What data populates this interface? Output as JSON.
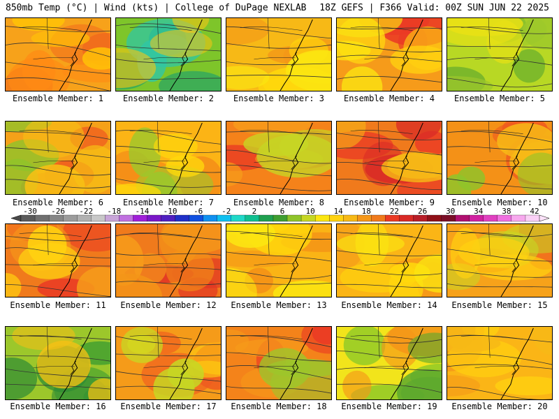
{
  "header": {
    "left": "850mb Temp (°C) | Wind (kts) | College of DuPage NEXLAB",
    "right": "18Z GEFS | F366 Valid: 00Z SUN JUN 22 2025"
  },
  "members": [
    {
      "label": "Ensemble Member: 1",
      "base": "#f7a21a",
      "spots": [
        "#f06b1c",
        "#ff8a14",
        "#ffc107"
      ]
    },
    {
      "label": "Ensemble Member: 2",
      "base": "#7ec52a",
      "spots": [
        "#1ea26b",
        "#2fc6a6",
        "#f6c515"
      ]
    },
    {
      "label": "Ensemble Member: 3",
      "base": "#f7b916",
      "spots": [
        "#f39517",
        "#ffd80c",
        "#fbe611"
      ]
    },
    {
      "label": "Ensemble Member: 4",
      "base": "#f69b1a",
      "spots": [
        "#ea3a24",
        "#ffd210",
        "#fbe611"
      ]
    },
    {
      "label": "Ensemble Member: 5",
      "base": "#b8d824",
      "spots": [
        "#5ca82e",
        "#9cc72b",
        "#e9e115"
      ]
    },
    {
      "label": "Ensemble Member: 6",
      "base": "#f5a119",
      "spots": [
        "#ef5b1f",
        "#8fc42a",
        "#f7c014"
      ]
    },
    {
      "label": "Ensemble Member: 7",
      "base": "#fcb415",
      "spots": [
        "#f48d18",
        "#9cc72b",
        "#ffd80c"
      ]
    },
    {
      "label": "Ensemble Member: 8",
      "base": "#f5821a",
      "spots": [
        "#ea3a24",
        "#f69b1a",
        "#c6d724"
      ]
    },
    {
      "label": "Ensemble Member: 9",
      "base": "#f07a1c",
      "spots": [
        "#ea3a24",
        "#d92a26",
        "#f7b916"
      ]
    },
    {
      "label": "Ensemble Member: 10",
      "base": "#f49117",
      "spots": [
        "#ef5b1f",
        "#f7b916",
        "#8fc42a"
      ]
    },
    {
      "label": "Ensemble Member: 11",
      "base": "#f07a1c",
      "spots": [
        "#ea3a24",
        "#f69b1a",
        "#ffd210"
      ]
    },
    {
      "label": "Ensemble Member: 12",
      "base": "#f07a1c",
      "spots": [
        "#e13424",
        "#f69b1a",
        "#f39517"
      ]
    },
    {
      "label": "Ensemble Member: 13",
      "base": "#fab415",
      "spots": [
        "#f49117",
        "#ffd80c",
        "#fbe611"
      ]
    },
    {
      "label": "Ensemble Member: 14",
      "base": "#fbb516",
      "spots": [
        "#f59719",
        "#ffd80c",
        "#fbe611"
      ]
    },
    {
      "label": "Ensemble Member: 15",
      "base": "#f7a21a",
      "spots": [
        "#ef5b1f",
        "#c6d724",
        "#ffd210"
      ]
    },
    {
      "label": "Ensemble Member: 16",
      "base": "#9cc72b",
      "spots": [
        "#3f9e31",
        "#2f8c34",
        "#f7c014"
      ]
    },
    {
      "label": "Ensemble Member: 17",
      "base": "#f59b19",
      "spots": [
        "#ef5b1f",
        "#ffd210",
        "#c6d724"
      ]
    },
    {
      "label": "Ensemble Member: 18",
      "base": "#f4831a",
      "spots": [
        "#ea3a24",
        "#f69b1a",
        "#9cc72b"
      ]
    },
    {
      "label": "Ensemble Member: 19",
      "base": "#f2e41b",
      "spots": [
        "#7ec52a",
        "#f59719",
        "#5ca82e"
      ]
    },
    {
      "label": "Ensemble Member: 20",
      "base": "#fbb516",
      "spots": [
        "#f59719",
        "#ffd210",
        "#f7b916"
      ]
    }
  ],
  "colorbar": {
    "ticks": [
      "-30",
      "-26",
      "-22",
      "-18",
      "-14",
      "-10",
      "-6",
      "-2",
      "2",
      "6",
      "10",
      "14",
      "18",
      "22",
      "26",
      "30",
      "34",
      "38",
      "42"
    ],
    "colors": [
      "#5a5a5a",
      "#707070",
      "#878787",
      "#9c9c9c",
      "#b1b1b1",
      "#c8c8c8",
      "#c8a5d8",
      "#c070e0",
      "#a020d8",
      "#7a18c8",
      "#5020c0",
      "#2030c8",
      "#1050e0",
      "#1090f0",
      "#10c0f0",
      "#20d8c8",
      "#10c090",
      "#20a050",
      "#3f9e31",
      "#8fc42a",
      "#c6d724",
      "#fbe611",
      "#ffd210",
      "#f7b916",
      "#f59719",
      "#f07a1c",
      "#ea3a24",
      "#d92a26",
      "#b81e28",
      "#901018",
      "#7a0f28",
      "#b01070",
      "#d020a0",
      "#e040c0",
      "#f070e0",
      "#f7a8ee",
      "#fad0f6"
    ]
  }
}
